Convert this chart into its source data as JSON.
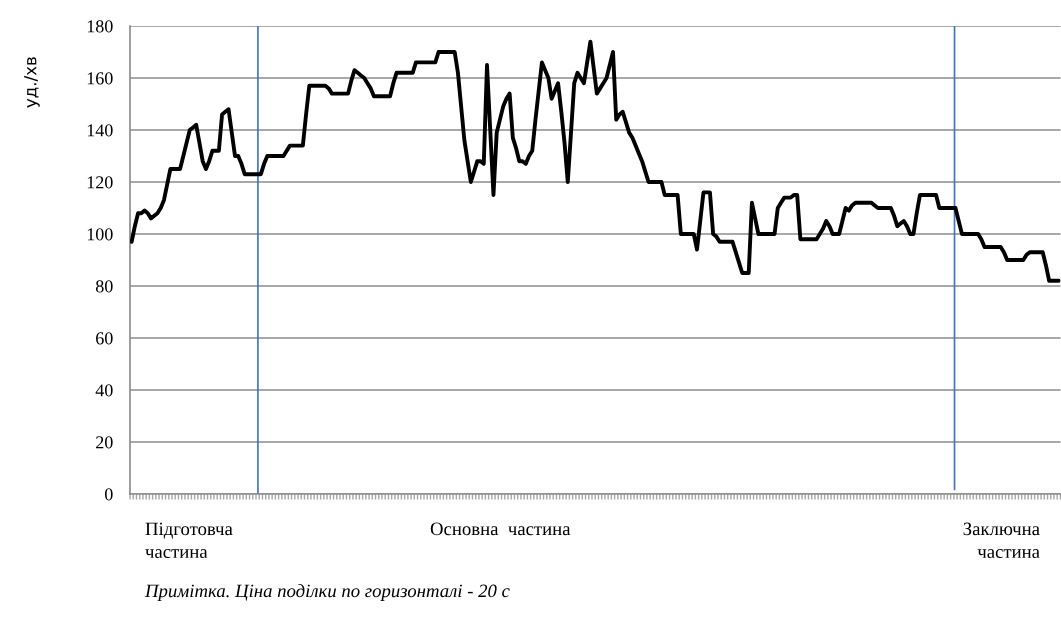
{
  "chart_data": {
    "type": "line",
    "ylabel": "уд./хв",
    "annotations": [
      "Підготовча\nчастина",
      "Основна  частина",
      "Заключна\nчастина",
      "Примітка. Ціна поділки по горизонталі - 20 с"
    ],
    "color": "#000000",
    "categories": [
      null,
      null,
      null,
      null,
      null,
      null,
      null,
      null,
      null,
      null,
      null,
      null,
      null,
      null,
      null,
      null,
      null,
      null,
      null,
      null,
      null,
      null,
      null,
      null,
      null,
      null,
      null,
      null,
      null,
      null,
      null,
      null,
      null,
      null,
      null,
      null,
      null,
      null,
      null,
      null,
      null,
      null,
      null,
      null,
      null,
      null,
      null,
      null,
      null,
      null,
      null,
      null,
      null,
      null,
      null,
      null,
      null,
      null,
      null,
      null,
      null,
      null,
      null,
      null,
      null,
      null,
      null,
      null,
      null,
      null,
      null,
      null,
      null,
      null,
      null,
      null,
      null,
      null,
      null,
      null,
      null,
      null,
      null,
      null,
      null,
      null,
      null,
      null,
      null,
      null,
      null,
      null,
      null,
      null,
      null,
      null,
      null,
      null,
      null,
      null,
      null,
      null,
      null,
      null,
      null,
      null,
      null,
      null,
      null,
      null,
      null,
      null,
      null,
      null,
      null,
      null,
      null,
      null,
      null,
      null,
      null,
      null,
      null,
      null,
      null,
      null,
      null,
      null,
      null,
      null,
      null,
      null,
      null,
      null,
      null,
      null,
      null,
      null,
      null,
      null,
      null,
      null,
      null,
      null,
      null,
      null,
      null,
      null,
      null,
      null,
      null,
      null,
      null,
      null,
      null,
      null,
      null,
      null,
      null,
      null,
      null,
      null,
      null,
      null,
      null,
      null,
      null,
      null,
      null,
      null,
      null,
      null,
      null,
      null,
      null,
      null,
      null,
      null,
      null,
      null,
      null,
      null,
      null,
      null,
      null,
      null,
      null,
      null,
      null,
      null,
      null,
      null,
      null,
      null,
      null,
      null,
      null,
      null,
      null,
      null,
      null,
      null,
      null,
      null,
      null,
      null,
      null,
      null,
      null,
      null,
      null,
      null,
      null,
      null,
      null,
      null,
      null,
      null,
      null,
      null,
      null,
      null,
      null,
      null,
      null,
      null,
      null,
      null,
      null,
      null,
      null,
      null,
      null,
      null,
      null,
      null,
      null,
      null,
      null,
      null,
      null,
      null,
      null,
      null,
      null,
      null,
      null,
      null,
      null,
      null,
      null,
      null,
      null,
      null,
      null,
      null,
      null,
      null,
      null,
      null,
      null,
      null,
      null,
      null,
      null,
      null,
      null,
      null,
      null,
      null,
      null,
      null,
      null,
      null,
      null,
      null,
      null,
      null,
      null,
      null,
      null,
      null,
      null,
      null,
      null,
      null,
      null,
      null
    ],
    "values": [
      97,
      103,
      108,
      108,
      109,
      108,
      106,
      107,
      108,
      110,
      113,
      119,
      125,
      125,
      125,
      125,
      130,
      135,
      140,
      141,
      142,
      135,
      128,
      125,
      128,
      132,
      132,
      132,
      146,
      147,
      148,
      139,
      130,
      130,
      127,
      123,
      123,
      123,
      123,
      123,
      123,
      127,
      130,
      130,
      130,
      130,
      130,
      130,
      132,
      134,
      134,
      134,
      134,
      134,
      146,
      157,
      157,
      157,
      157,
      157,
      157,
      156,
      154,
      154,
      154,
      154,
      154,
      154,
      159,
      163,
      162,
      161,
      160,
      158,
      156,
      153,
      153,
      153,
      153,
      153,
      153,
      158,
      162,
      162,
      162,
      162,
      162,
      162,
      166,
      166,
      166,
      166,
      166,
      166,
      166,
      170,
      170,
      170,
      170,
      170,
      170,
      162,
      149,
      136,
      128,
      120,
      124,
      128,
      128,
      127,
      165,
      140,
      115,
      139,
      144,
      149,
      152,
      154,
      137,
      133,
      128,
      128,
      127,
      130,
      132,
      144,
      155,
      166,
      163,
      160,
      152,
      155,
      158,
      147,
      135,
      120,
      139,
      158,
      162,
      160,
      158,
      166,
      174,
      164,
      154,
      156,
      158,
      160,
      165,
      170,
      144,
      146,
      147,
      143,
      139,
      137,
      134,
      131,
      128,
      124,
      120,
      120,
      120,
      120,
      120,
      115,
      115,
      115,
      115,
      115,
      100,
      100,
      100,
      100,
      100,
      94,
      105,
      116,
      116,
      116,
      100,
      99,
      97,
      97,
      97,
      97,
      97,
      93,
      89,
      85,
      85,
      85,
      112,
      106,
      100,
      100,
      100,
      100,
      100,
      100,
      110,
      112,
      114,
      114,
      114,
      115,
      115,
      98,
      98,
      98,
      98,
      98,
      98,
      100,
      102,
      105,
      103,
      100,
      100,
      100,
      105,
      110,
      109,
      111,
      112,
      112,
      112,
      112,
      112,
      112,
      111,
      110,
      110,
      110,
      110,
      110,
      107,
      103,
      104,
      105,
      103,
      100,
      100,
      108,
      115,
      115,
      115,
      115,
      115,
      115,
      110,
      110,
      110,
      110,
      110,
      110,
      105,
      100,
      100,
      100,
      100,
      100,
      100,
      98,
      95,
      95,
      95,
      95,
      95,
      95,
      93,
      90,
      90,
      90,
      90,
      90,
      90,
      92,
      93,
      93,
      93,
      93,
      93,
      88,
      82,
      82,
      82,
      82
    ],
    "ylim": [
      0,
      180
    ],
    "yticks": [
      0,
      20,
      40,
      60,
      80,
      100,
      120,
      140,
      160,
      180
    ],
    "grid": "y"
  }
}
